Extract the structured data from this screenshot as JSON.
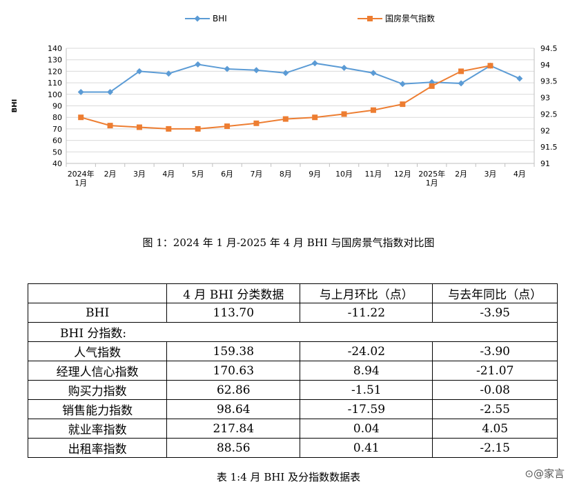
{
  "chart_data": {
    "type": "line",
    "categories": [
      "2024年\n1月",
      "2月",
      "3月",
      "4月",
      "5月",
      "6月",
      "7月",
      "8月",
      "9月",
      "10月",
      "11月",
      "12月",
      "2025年\n1月",
      "2月",
      "3月",
      "4月"
    ],
    "series": [
      {
        "name": "BHI",
        "axis": "left",
        "color": "#5B9BD5",
        "marker": "diamond",
        "values": [
          102,
          102,
          120,
          118,
          126,
          122,
          121,
          118.5,
          127,
          123,
          118.5,
          109,
          110.5,
          109.5,
          124.9,
          113.7
        ]
      },
      {
        "name": "国房景气指数",
        "axis": "right",
        "color": "#ED7D31",
        "marker": "square",
        "values": [
          92.4,
          92.15,
          92.1,
          92.05,
          92.05,
          92.13,
          92.22,
          92.35,
          92.4,
          92.5,
          92.62,
          92.8,
          93.35,
          93.8,
          93.97,
          null
        ]
      }
    ],
    "ylabel": "BHI",
    "ylim": [
      40,
      140
    ],
    "yticks": [
      40,
      50,
      60,
      70,
      80,
      90,
      100,
      110,
      120,
      130,
      140
    ],
    "y2lim": [
      91,
      94.5
    ],
    "y2ticks": [
      "91",
      "91.5",
      "92",
      "92.5",
      "93",
      "93.5",
      "94",
      "94.5"
    ],
    "legend_position": "top",
    "grid": "horizontal"
  },
  "figure_caption": "图 1：2024 年 1 月-2025 年 4 月 BHI 与国房景气指数对比图",
  "table": {
    "headers": [
      "",
      "4 月 BHI 分类数据",
      "与上月环比（点）",
      "与去年同比（点）"
    ],
    "bhi_row": [
      "BHI",
      "113.70",
      "-11.22",
      "-3.95"
    ],
    "section_label": "BHI 分指数:",
    "sub_rows": [
      [
        "人气指数",
        "159.38",
        "-24.02",
        "-3.90"
      ],
      [
        "经理人信心指数",
        "170.63",
        "8.94",
        "-21.07"
      ],
      [
        "购买力指数",
        "62.86",
        "-1.51",
        "-0.08"
      ],
      [
        "销售能力指数",
        "98.64",
        "-17.59",
        "-2.55"
      ],
      [
        "就业率指数",
        "217.84",
        "0.04",
        "4.05"
      ],
      [
        "出租率指数",
        "88.56",
        "0.41",
        "-2.15"
      ]
    ]
  },
  "table_caption": "表 1:4 月 BHI 及分指数数据表",
  "watermark": "⊙@家言"
}
